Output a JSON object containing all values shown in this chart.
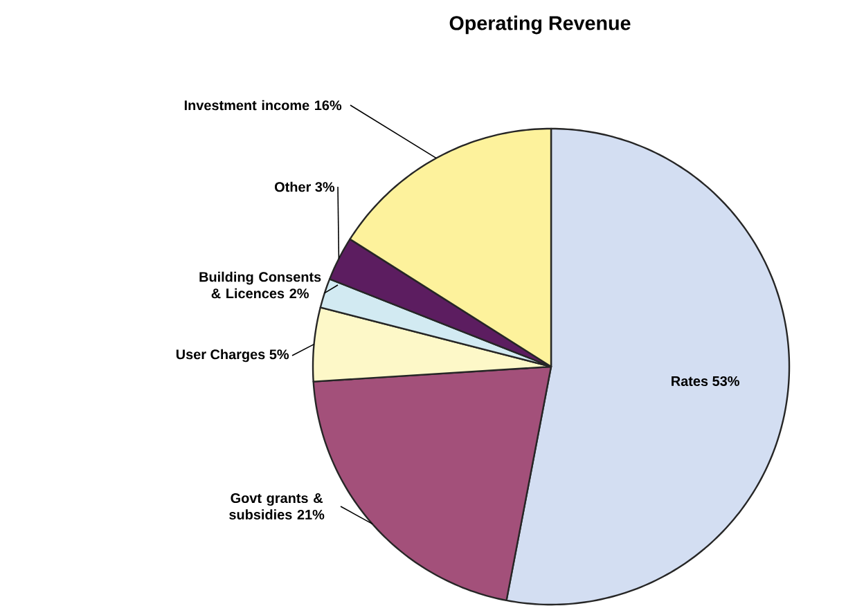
{
  "chart_data": {
    "type": "pie",
    "title": "Operating Revenue",
    "categories": [
      "Rates",
      "Govt grants & subsidies",
      "User Charges",
      "Building Consents & Licences",
      "Other",
      "Investment income"
    ],
    "values": [
      53,
      21,
      5,
      2,
      3,
      16
    ],
    "value_labels": [
      "53%",
      "21%",
      "5%",
      "2%",
      "3%",
      "16%"
    ],
    "colors": [
      "#d3def2",
      "#a3507a",
      "#fdf8c8",
      "#d2eaf2",
      "#5c1d60",
      "#fdf29c"
    ]
  }
}
